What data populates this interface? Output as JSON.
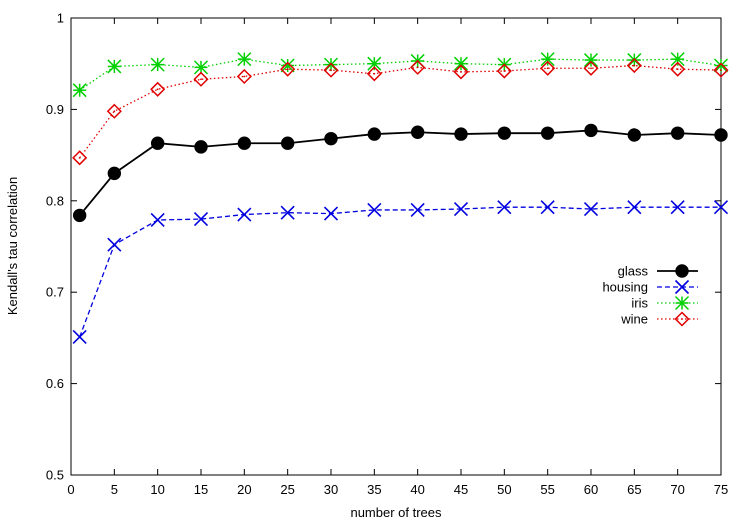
{
  "chart_data": {
    "type": "line",
    "title": "",
    "xlabel": "number of trees",
    "ylabel": "Kendall's tau correlation",
    "xlim": [
      0,
      75
    ],
    "ylim": [
      0.5,
      1
    ],
    "x_ticks": [
      0,
      5,
      10,
      15,
      20,
      25,
      30,
      35,
      40,
      45,
      50,
      55,
      60,
      65,
      70,
      75
    ],
    "y_ticks": [
      0.5,
      0.6,
      0.7,
      0.8,
      0.9,
      1
    ],
    "y_tick_labels": [
      "0.5",
      "0.6",
      "0.7",
      "0.8",
      "0.9",
      "1"
    ],
    "grid": false,
    "legend_position": "right",
    "x": [
      1,
      5,
      10,
      15,
      20,
      25,
      30,
      35,
      40,
      45,
      50,
      55,
      60,
      65,
      70,
      75
    ],
    "series": [
      {
        "name": "glass",
        "color": "#000000",
        "dash": "solid",
        "marker": "filled-circle",
        "values": [
          0.784,
          0.83,
          0.863,
          0.859,
          0.863,
          0.863,
          0.868,
          0.873,
          0.875,
          0.873,
          0.874,
          0.874,
          0.877,
          0.872,
          0.874,
          0.872
        ]
      },
      {
        "name": "housing",
        "color": "#0000e0",
        "dash": "dashed",
        "marker": "x",
        "values": [
          0.651,
          0.752,
          0.779,
          0.78,
          0.785,
          0.787,
          0.786,
          0.79,
          0.79,
          0.791,
          0.793,
          0.793,
          0.791,
          0.793,
          0.793,
          0.793
        ]
      },
      {
        "name": "iris",
        "color": "#00d000",
        "dash": "dotted",
        "marker": "star",
        "values": [
          0.921,
          0.947,
          0.949,
          0.946,
          0.955,
          0.948,
          0.949,
          0.95,
          0.953,
          0.95,
          0.949,
          0.955,
          0.954,
          0.954,
          0.955,
          0.948
        ]
      },
      {
        "name": "wine",
        "color": "#e00000",
        "dash": "dotted",
        "marker": "open-diamond",
        "values": [
          0.847,
          0.898,
          0.922,
          0.933,
          0.936,
          0.944,
          0.943,
          0.939,
          0.946,
          0.941,
          0.942,
          0.945,
          0.945,
          0.948,
          0.944,
          0.943
        ]
      }
    ]
  }
}
